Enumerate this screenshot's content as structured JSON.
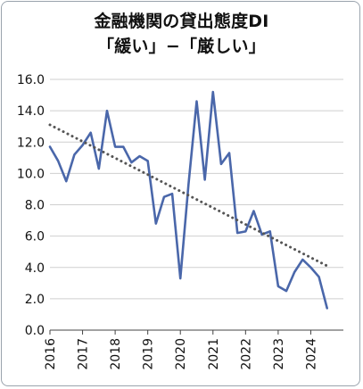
{
  "chart_data": {
    "type": "line",
    "title": "金融機関の貸出態度DI",
    "subtitle": "「緩い」−「厳しい」",
    "xlabel": "",
    "ylabel": "",
    "ylim": [
      0,
      16
    ],
    "yticks": [
      "0.0",
      "2.0",
      "4.0",
      "6.0",
      "8.0",
      "10.0",
      "12.0",
      "14.0",
      "16.0"
    ],
    "xticks": [
      "2016",
      "2017",
      "2018",
      "2019",
      "2020",
      "2021",
      "2022",
      "2023",
      "2024"
    ],
    "grid": "horizontal",
    "legend": "none",
    "series": [
      {
        "color": "#4a67aa",
        "style": "solid",
        "x": [
          "2016-01",
          "2016-04",
          "2016-07",
          "2016-10",
          "2017-01",
          "2017-04",
          "2017-07",
          "2017-10",
          "2018-01",
          "2018-04",
          "2018-07",
          "2018-10",
          "2019-01",
          "2019-04",
          "2019-07",
          "2019-10",
          "2020-01",
          "2020-04",
          "2020-07",
          "2020-10",
          "2021-01",
          "2021-04",
          "2021-07",
          "2021-10",
          "2022-01",
          "2022-04",
          "2022-07",
          "2022-10",
          "2023-01",
          "2023-04",
          "2023-07",
          "2023-10",
          "2024-01",
          "2024-04",
          "2024-07"
        ],
        "values": [
          11.7,
          10.8,
          9.5,
          11.2,
          11.8,
          12.6,
          10.3,
          14.0,
          11.7,
          11.7,
          10.7,
          11.1,
          10.8,
          6.8,
          8.5,
          8.7,
          3.3,
          9.3,
          14.6,
          9.6,
          15.2,
          10.6,
          11.3,
          6.2,
          6.3,
          7.6,
          6.1,
          6.3,
          2.8,
          2.5,
          3.7,
          4.5,
          4.0,
          3.4,
          1.4
        ]
      },
      {
        "color": "#555555",
        "style": "dotted",
        "x": [
          "2016-01",
          "2024-07"
        ],
        "values": [
          13.1,
          4.1
        ]
      }
    ]
  }
}
